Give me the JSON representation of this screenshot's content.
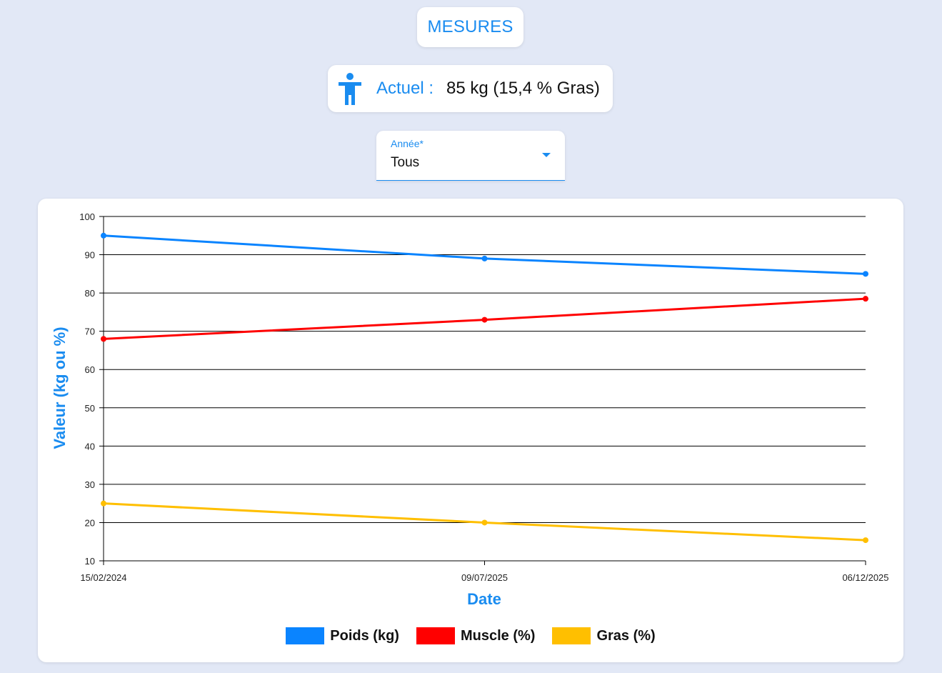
{
  "header": {
    "title": "MESURES"
  },
  "current": {
    "icon": "person-standing-icon",
    "label": "Actuel :",
    "value": "85 kg (15,4 % Gras)"
  },
  "year_select": {
    "label": "Année*",
    "selected": "Tous",
    "icon": "caret-down-icon"
  },
  "colors": {
    "accent": "#1a8cf0",
    "poids": "#0a84ff",
    "muscle": "#ff0000",
    "gras": "#ffbf00"
  },
  "chart_data": {
    "type": "line",
    "xlabel": "Date",
    "ylabel": "Valeur (kg ou %)",
    "categories": [
      "15/02/2024",
      "09/07/2025",
      "06/12/2025"
    ],
    "ylim": [
      10,
      100
    ],
    "yticks": [
      10,
      20,
      30,
      40,
      50,
      60,
      70,
      80,
      90,
      100
    ],
    "grid": true,
    "legend_position": "bottom",
    "series": [
      {
        "name": "Poids (kg)",
        "color": "#0a84ff",
        "values": [
          95,
          89,
          85
        ]
      },
      {
        "name": "Muscle (%)",
        "color": "#ff0000",
        "values": [
          68,
          73,
          78.5
        ]
      },
      {
        "name": "Gras (%)",
        "color": "#ffbf00",
        "values": [
          25,
          20,
          15.4
        ]
      }
    ]
  }
}
